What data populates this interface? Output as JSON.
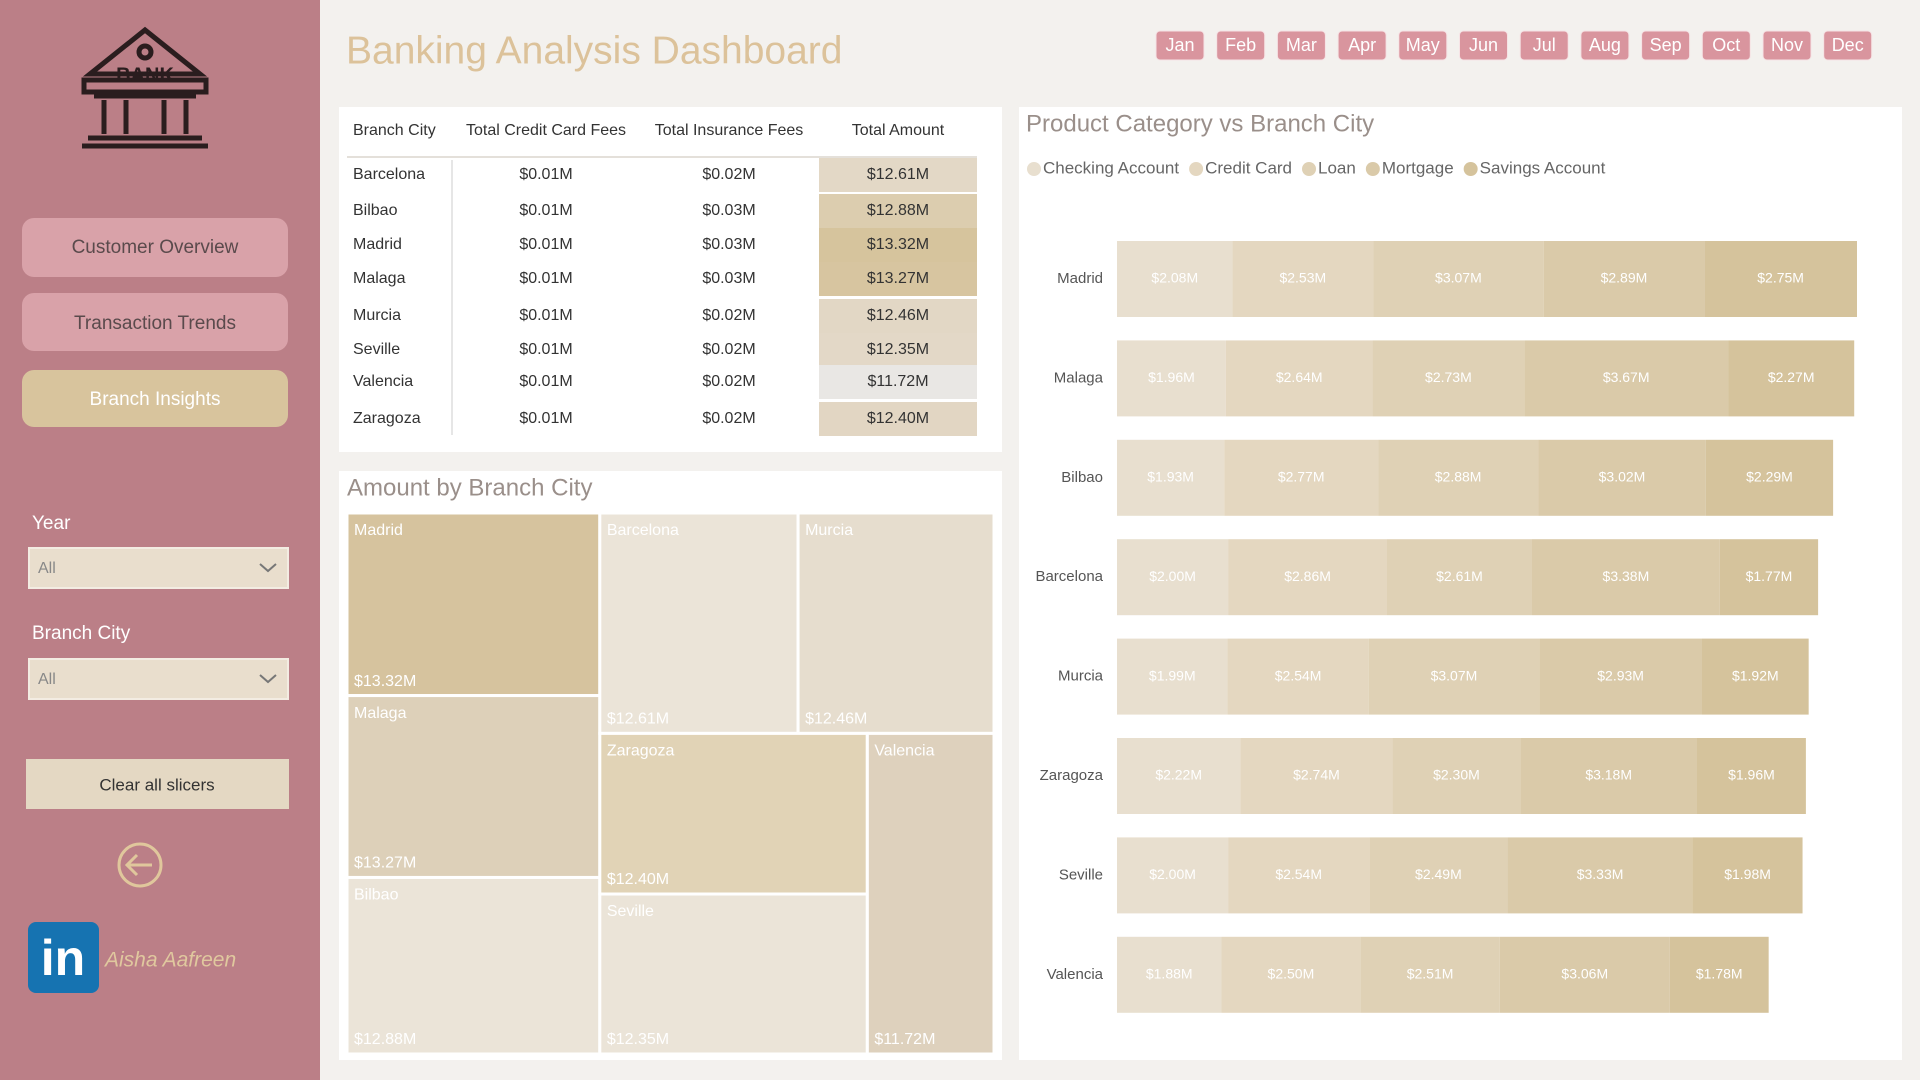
{
  "sidebar": {
    "logo_text": "BANK",
    "nav": [
      "Customer Overview",
      "Transaction Trends",
      "Branch Insights"
    ],
    "filters": [
      {
        "label": "Year",
        "value": "All"
      },
      {
        "label": "Branch City",
        "value": "All"
      }
    ],
    "clear_button": "Clear all slicers",
    "linkedin": "in",
    "author": "Aisha Aafreen"
  },
  "header": {
    "title": "Banking Analysis Dashboard",
    "months": [
      "Jan",
      "Feb",
      "Mar",
      "Apr",
      "May",
      "Jun",
      "Jul",
      "Aug",
      "Sep",
      "Oct",
      "Nov",
      "Dec"
    ]
  },
  "table": {
    "columns": [
      "Branch City",
      "Total Credit Card Fees",
      "Total Insurance Fees",
      "Total Amount"
    ],
    "rows": [
      [
        "Barcelona",
        "$0.01M",
        "$0.02M",
        "$12.61M"
      ],
      [
        "Bilbao",
        "$0.01M",
        "$0.03M",
        "$12.88M"
      ],
      [
        "Madrid",
        "$0.01M",
        "$0.03M",
        "$13.32M"
      ],
      [
        "Malaga",
        "$0.01M",
        "$0.03M",
        "$13.27M"
      ],
      [
        "Murcia",
        "$0.01M",
        "$0.02M",
        "$12.46M"
      ],
      [
        "Seville",
        "$0.01M",
        "$0.02M",
        "$12.35M"
      ],
      [
        "Valencia",
        "$0.01M",
        "$0.02M",
        "$11.72M"
      ],
      [
        "Zaragoza",
        "$0.01M",
        "$0.02M",
        "$12.40M"
      ]
    ]
  },
  "chart_data": [
    {
      "type": "treemap",
      "title": "Amount by Branch City",
      "categories": [
        "Madrid",
        "Malaga",
        "Bilbao",
        "Barcelona",
        "Murcia",
        "Zaragoza",
        "Seville",
        "Valencia"
      ],
      "values": [
        13.32,
        13.27,
        12.88,
        12.61,
        12.46,
        12.4,
        12.35,
        11.72
      ],
      "value_labels": [
        "$13.32M",
        "$13.27M",
        "$12.88M",
        "$12.61M",
        "$12.46M",
        "$12.40M",
        "$12.35M",
        "$11.72M"
      ],
      "colors": [
        "#d6c39e",
        "#ddd0b9",
        "#ebe4d8",
        "#ebe4d8",
        "#e6ddce",
        "#e1d3b6",
        "#ebe4d8",
        "#ded1bd"
      ]
    },
    {
      "type": "stacked_barh",
      "title": "Product Category vs Branch City",
      "categories": [
        "Madrid",
        "Malaga",
        "Bilbao",
        "Barcelona",
        "Murcia",
        "Zaragoza",
        "Seville",
        "Valencia"
      ],
      "legend": "top-left",
      "series": [
        {
          "name": "Checking Account",
          "color": "#e8dfcf",
          "values": [
            2.08,
            1.96,
            1.93,
            2.0,
            1.99,
            2.22,
            2.0,
            1.88
          ],
          "value_labels": [
            "$2.08M",
            "$1.96M",
            "$1.93M",
            "$2.00M",
            "$1.99M",
            "$2.22M",
            "$2.00M",
            "$1.88M"
          ]
        },
        {
          "name": "Credit Card",
          "color": "#e4d7c0",
          "values": [
            2.53,
            2.64,
            2.77,
            2.86,
            2.54,
            2.74,
            2.54,
            2.5
          ],
          "value_labels": [
            "$2.53M",
            "$2.64M",
            "$2.77M",
            "$2.86M",
            "$2.54M",
            "$2.74M",
            "$2.54M",
            "$2.50M"
          ]
        },
        {
          "name": "Loan",
          "color": "#dfd1b5",
          "values": [
            3.07,
            2.73,
            2.88,
            2.61,
            3.07,
            2.3,
            2.49,
            2.51
          ],
          "value_labels": [
            "$3.07M",
            "$2.73M",
            "$2.88M",
            "$2.61M",
            "$3.07M",
            "$2.30M",
            "$2.49M",
            "$2.51M"
          ]
        },
        {
          "name": "Mortgage",
          "color": "#dacaa9",
          "values": [
            2.89,
            3.67,
            3.02,
            3.38,
            2.93,
            3.18,
            3.33,
            3.06
          ],
          "value_labels": [
            "$2.89M",
            "$3.67M",
            "$3.02M",
            "$3.38M",
            "$2.93M",
            "$3.18M",
            "$3.33M",
            "$3.06M"
          ]
        },
        {
          "name": "Savings Account",
          "color": "#d5c39c",
          "values": [
            2.75,
            2.27,
            2.29,
            1.77,
            1.92,
            1.96,
            1.98,
            1.78
          ],
          "value_labels": [
            "$2.75M",
            "$2.27M",
            "$2.29M",
            "$1.77M",
            "$1.92M",
            "$1.96M",
            "$1.98M",
            "$1.78M"
          ]
        }
      ]
    }
  ]
}
